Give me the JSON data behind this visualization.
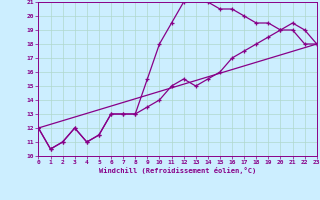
{
  "xlabel": "Windchill (Refroidissement éolien,°C)",
  "bg_color": "#cceeff",
  "grid_color": "#b0d8cc",
  "line_color": "#880088",
  "xmin": 0,
  "xmax": 23,
  "ymin": 10,
  "ymax": 21,
  "yticks": [
    10,
    11,
    12,
    13,
    14,
    15,
    16,
    17,
    18,
    19,
    20,
    21
  ],
  "xticks": [
    0,
    1,
    2,
    3,
    4,
    5,
    6,
    7,
    8,
    9,
    10,
    11,
    12,
    13,
    14,
    15,
    16,
    17,
    18,
    19,
    20,
    21,
    22,
    23
  ],
  "line1_x": [
    0,
    1,
    2,
    3,
    4,
    5,
    6,
    7,
    8,
    9,
    10,
    11,
    12,
    13,
    14,
    15,
    16,
    17,
    18,
    19,
    20,
    21,
    22,
    23
  ],
  "line1_y": [
    12,
    10.5,
    11,
    12,
    11,
    11.5,
    13,
    13,
    13,
    15.5,
    18,
    19.5,
    21,
    21.5,
    21,
    20.5,
    20.5,
    20,
    19.5,
    19.5,
    19,
    19,
    18,
    18
  ],
  "line2_x": [
    0,
    1,
    2,
    3,
    4,
    5,
    6,
    7,
    8,
    9,
    10,
    11,
    12,
    13,
    14,
    15,
    16,
    17,
    18,
    19,
    20,
    21,
    22,
    23
  ],
  "line2_y": [
    12,
    10.5,
    11,
    12,
    11,
    11.5,
    13,
    13,
    13,
    13.5,
    14.0,
    15.0,
    15.5,
    15.0,
    15.5,
    16.0,
    17.0,
    17.5,
    18.0,
    18.5,
    19.0,
    19.5,
    19.0,
    18.0
  ],
  "line3_x": [
    0,
    23
  ],
  "line3_y": [
    12,
    18
  ]
}
